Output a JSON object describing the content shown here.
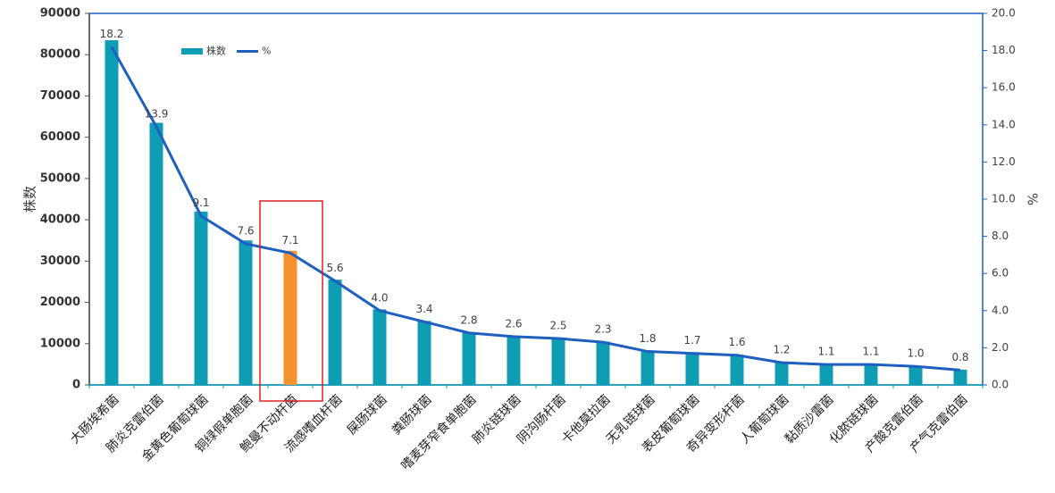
{
  "chart_data": {
    "type": "combo",
    "categories": [
      "大肠埃希菌",
      "肺炎克雷伯菌",
      "金黄色葡萄球菌",
      "铜绿假单胞菌",
      "鲍曼不动杆菌",
      "流感嗜血杆菌",
      "屎肠球菌",
      "粪肠球菌",
      "嗜麦芽窄食单胞菌",
      "肺炎链球菌",
      "阴沟肠杆菌",
      "卡他莫拉菌",
      "无乳链球菌",
      "表皮葡萄球菌",
      "奇异变形杆菌",
      "人葡萄球菌",
      "黏质沙雷菌",
      "化脓链球菌",
      "产酸克雷伯菌",
      "产气克雷伯菌"
    ],
    "series": [
      {
        "name": "株数",
        "type": "bar",
        "color": "#0e9db4",
        "values": [
          83500,
          63500,
          42000,
          35000,
          32500,
          25500,
          18300,
          15500,
          12800,
          11800,
          11500,
          10500,
          8200,
          7800,
          7300,
          5500,
          5000,
          5000,
          4500,
          3700
        ]
      },
      {
        "name": "%",
        "type": "line",
        "axis": "y2",
        "color": "#1f5fbf",
        "values": [
          18.2,
          13.9,
          9.1,
          7.6,
          7.1,
          5.6,
          4.0,
          3.4,
          2.8,
          2.6,
          2.5,
          2.3,
          1.8,
          1.7,
          1.6,
          1.2,
          1.1,
          1.1,
          1.0,
          0.8
        ],
        "value_labels": [
          "18.2",
          "13.9",
          "9.1",
          "7.6",
          "7.1",
          "5.6",
          "4.0",
          "3.4",
          "2.8",
          "2.6",
          "2.5",
          "2.3",
          "1.8",
          "1.7",
          "1.6",
          "1.2",
          "1.1",
          "1.1",
          "1.0",
          "0.8"
        ]
      }
    ],
    "highlight": {
      "index": 4,
      "color": "#f7922e",
      "box_color": "#e02020"
    },
    "ylabel": "株数",
    "y2label": "%",
    "ylim": [
      0,
      90000
    ],
    "yticks": [
      0,
      10000,
      20000,
      30000,
      40000,
      50000,
      60000,
      70000,
      80000,
      90000
    ],
    "y2lim": [
      0,
      20
    ],
    "y2ticks": [
      {
        "value": 0,
        "label": "0.0"
      },
      {
        "value": 2,
        "label": "2.0"
      },
      {
        "value": 4,
        "label": "4.0"
      },
      {
        "value": 6,
        "label": "6.0"
      },
      {
        "value": 8,
        "label": "8.0"
      },
      {
        "value": 10,
        "label": "10.0"
      },
      {
        "value": 12,
        "label": "12.0"
      },
      {
        "value": 14,
        "label": "14.0"
      },
      {
        "value": 16,
        "label": "16.0"
      },
      {
        "value": 18,
        "label": "18.0"
      },
      {
        "value": 20,
        "label": "20.0"
      }
    ],
    "legend": "top-left"
  }
}
